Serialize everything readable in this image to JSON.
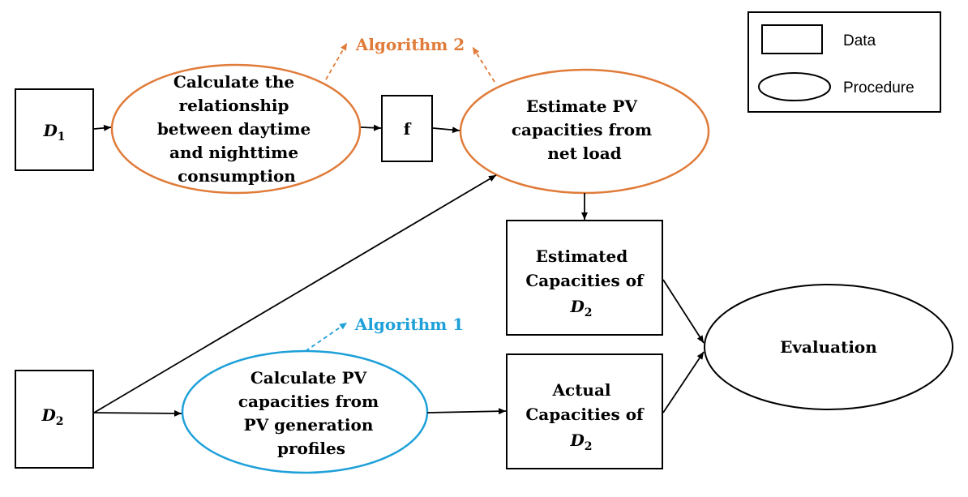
{
  "legend": {
    "data_label": "Data",
    "procedure_label": "Procedure"
  },
  "nodes": {
    "d1": {
      "main": "D",
      "sub": "1"
    },
    "d2": {
      "main": "D",
      "sub": "2"
    },
    "calc_relationship": {
      "lines": [
        "Calculate the",
        "relationship",
        "between daytime",
        "and nighttime",
        "consumption"
      ]
    },
    "f": {
      "label": "f"
    },
    "estimate_pv": {
      "lines": [
        "Estimate PV",
        "capacities from",
        "net load"
      ]
    },
    "estimated_capacities": {
      "lines": [
        "Estimated",
        "Capacities of"
      ],
      "var_main": "D",
      "var_sub": "2"
    },
    "calc_pv_profiles": {
      "lines": [
        "Calculate PV",
        "capacities from",
        "PV generation",
        "profiles"
      ]
    },
    "actual_capacities": {
      "lines": [
        "Actual",
        "Capacities of"
      ],
      "var_main": "D",
      "var_sub": "2"
    },
    "evaluation": {
      "label": "Evaluation"
    }
  },
  "algorithms": {
    "algorithm2": {
      "label": "Algorithm 2"
    },
    "algorithm1": {
      "label": "Algorithm 1"
    }
  },
  "colors": {
    "orange": "#E07B39",
    "blue": "#1EA0D8",
    "black": "#000000"
  }
}
